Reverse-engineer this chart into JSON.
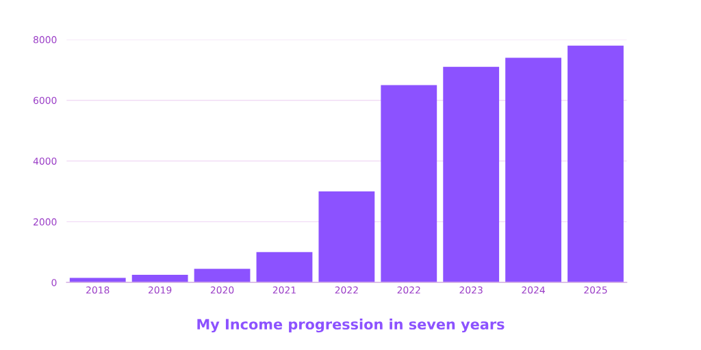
{
  "chart_data": {
    "type": "bar",
    "title": "My Income progression in seven years",
    "categories": [
      "2018",
      "2019",
      "2020",
      "2021",
      "2022",
      "2022",
      "2023",
      "2024",
      "2025"
    ],
    "values": [
      150,
      250,
      450,
      1000,
      3000,
      6500,
      7100,
      7400,
      7800
    ],
    "color": "#8c52ff",
    "ylim": [
      0,
      8000
    ],
    "yticks": [
      0,
      2000,
      4000,
      6000,
      8000
    ],
    "grid": "y"
  }
}
